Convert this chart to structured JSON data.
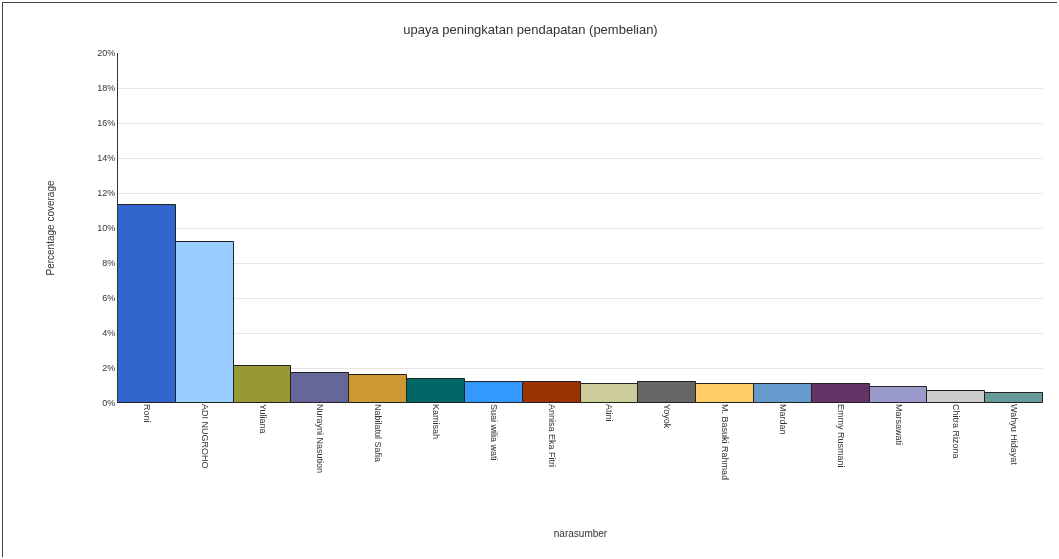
{
  "chart_data": {
    "type": "bar",
    "title": "upaya peningkatan pendapatan (pembelian)",
    "xlabel": "narasumber",
    "ylabel": "Percentage coverage",
    "categories": [
      "Roni",
      "ADI NUGROHO",
      "Yuliana",
      "Nurayni Nasution",
      "Nabilatul Safia",
      "Kamisah",
      "Suai wilia wati",
      "Annisa Eka Fitri",
      "Atini",
      "Yoyok",
      "M. Basuki Rahmad",
      "Mardan",
      "Emmy Rusmani",
      "Marsawati",
      "Chitra Rizona",
      "Wahyu Hidayat"
    ],
    "values": [
      11.3,
      9.2,
      2.1,
      1.7,
      1.6,
      1.4,
      1.2,
      1.2,
      1.1,
      1.2,
      1.1,
      1.1,
      1.1,
      0.9,
      0.7,
      0.6
    ],
    "colors": [
      "#3366cc",
      "#99ccff",
      "#999933",
      "#666699",
      "#cc9933",
      "#006666",
      "#3399ff",
      "#993300",
      "#cccc99",
      "#666666",
      "#ffcc66",
      "#6699cc",
      "#663366",
      "#9999cc",
      "#cccccc",
      "#669999"
    ],
    "ylim": [
      0,
      20
    ],
    "yticks": [
      {
        "value": 0,
        "label": "0%"
      },
      {
        "value": 2,
        "label": "2%"
      },
      {
        "value": 4,
        "label": "4%"
      },
      {
        "value": 6,
        "label": "6%"
      },
      {
        "value": 8,
        "label": "8%"
      },
      {
        "value": 10,
        "label": "10%"
      },
      {
        "value": 12,
        "label": "12%"
      },
      {
        "value": 14,
        "label": "14%"
      },
      {
        "value": 16,
        "label": "16%"
      },
      {
        "value": 18,
        "label": "18%"
      },
      {
        "value": 20,
        "label": "20%"
      }
    ],
    "grid": "y",
    "legend": false
  }
}
